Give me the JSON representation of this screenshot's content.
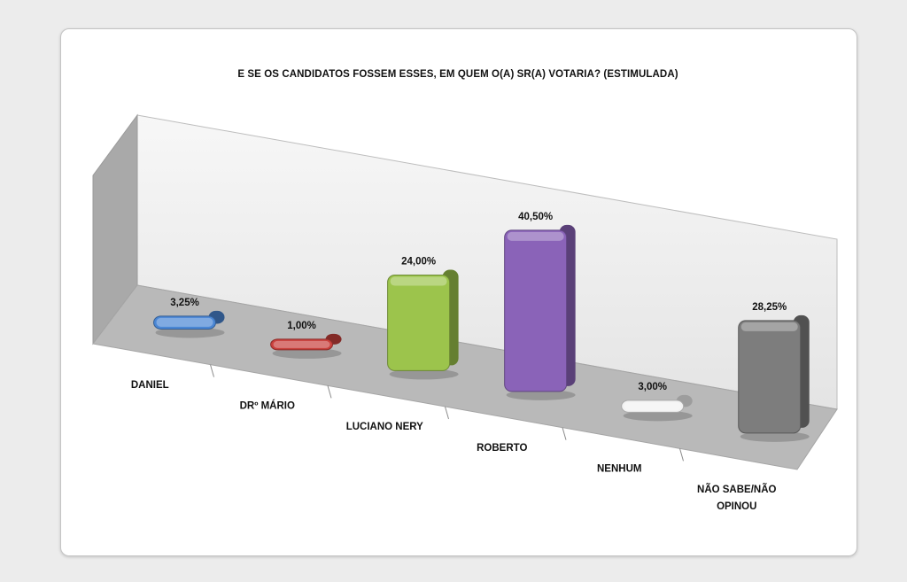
{
  "title": "E SE OS CANDIDATOS FOSSEM ESSES, EM QUEM O(A) SR(A) VOTARIA? (ESTIMULADA)",
  "chart_data": {
    "type": "bar",
    "title": "E SE OS CANDIDATOS FOSSEM ESSES, EM QUEM O(A) SR(A) VOTARIA? (ESTIMULADA)",
    "categories": [
      "DANIEL",
      "DRº MÁRIO",
      "LUCIANO NERY",
      "ROBERTO",
      "NENHUM",
      "NÃO SABE/NÃO OPINOU"
    ],
    "values": [
      3.25,
      1.0,
      24.0,
      40.5,
      3.0,
      28.25
    ],
    "data_labels": [
      "3,25%",
      "1,00%",
      "24,00%",
      "40,50%",
      "3,00%",
      "28,25%"
    ],
    "colors": [
      "#4a86d4",
      "#c9403c",
      "#9cc44c",
      "#8a63b8",
      "#f2f2f2",
      "#7d7d7d"
    ],
    "xlabel": "",
    "ylabel": "",
    "ylim": [
      0,
      45
    ],
    "grid": false,
    "legend": "none",
    "style": "3d"
  }
}
